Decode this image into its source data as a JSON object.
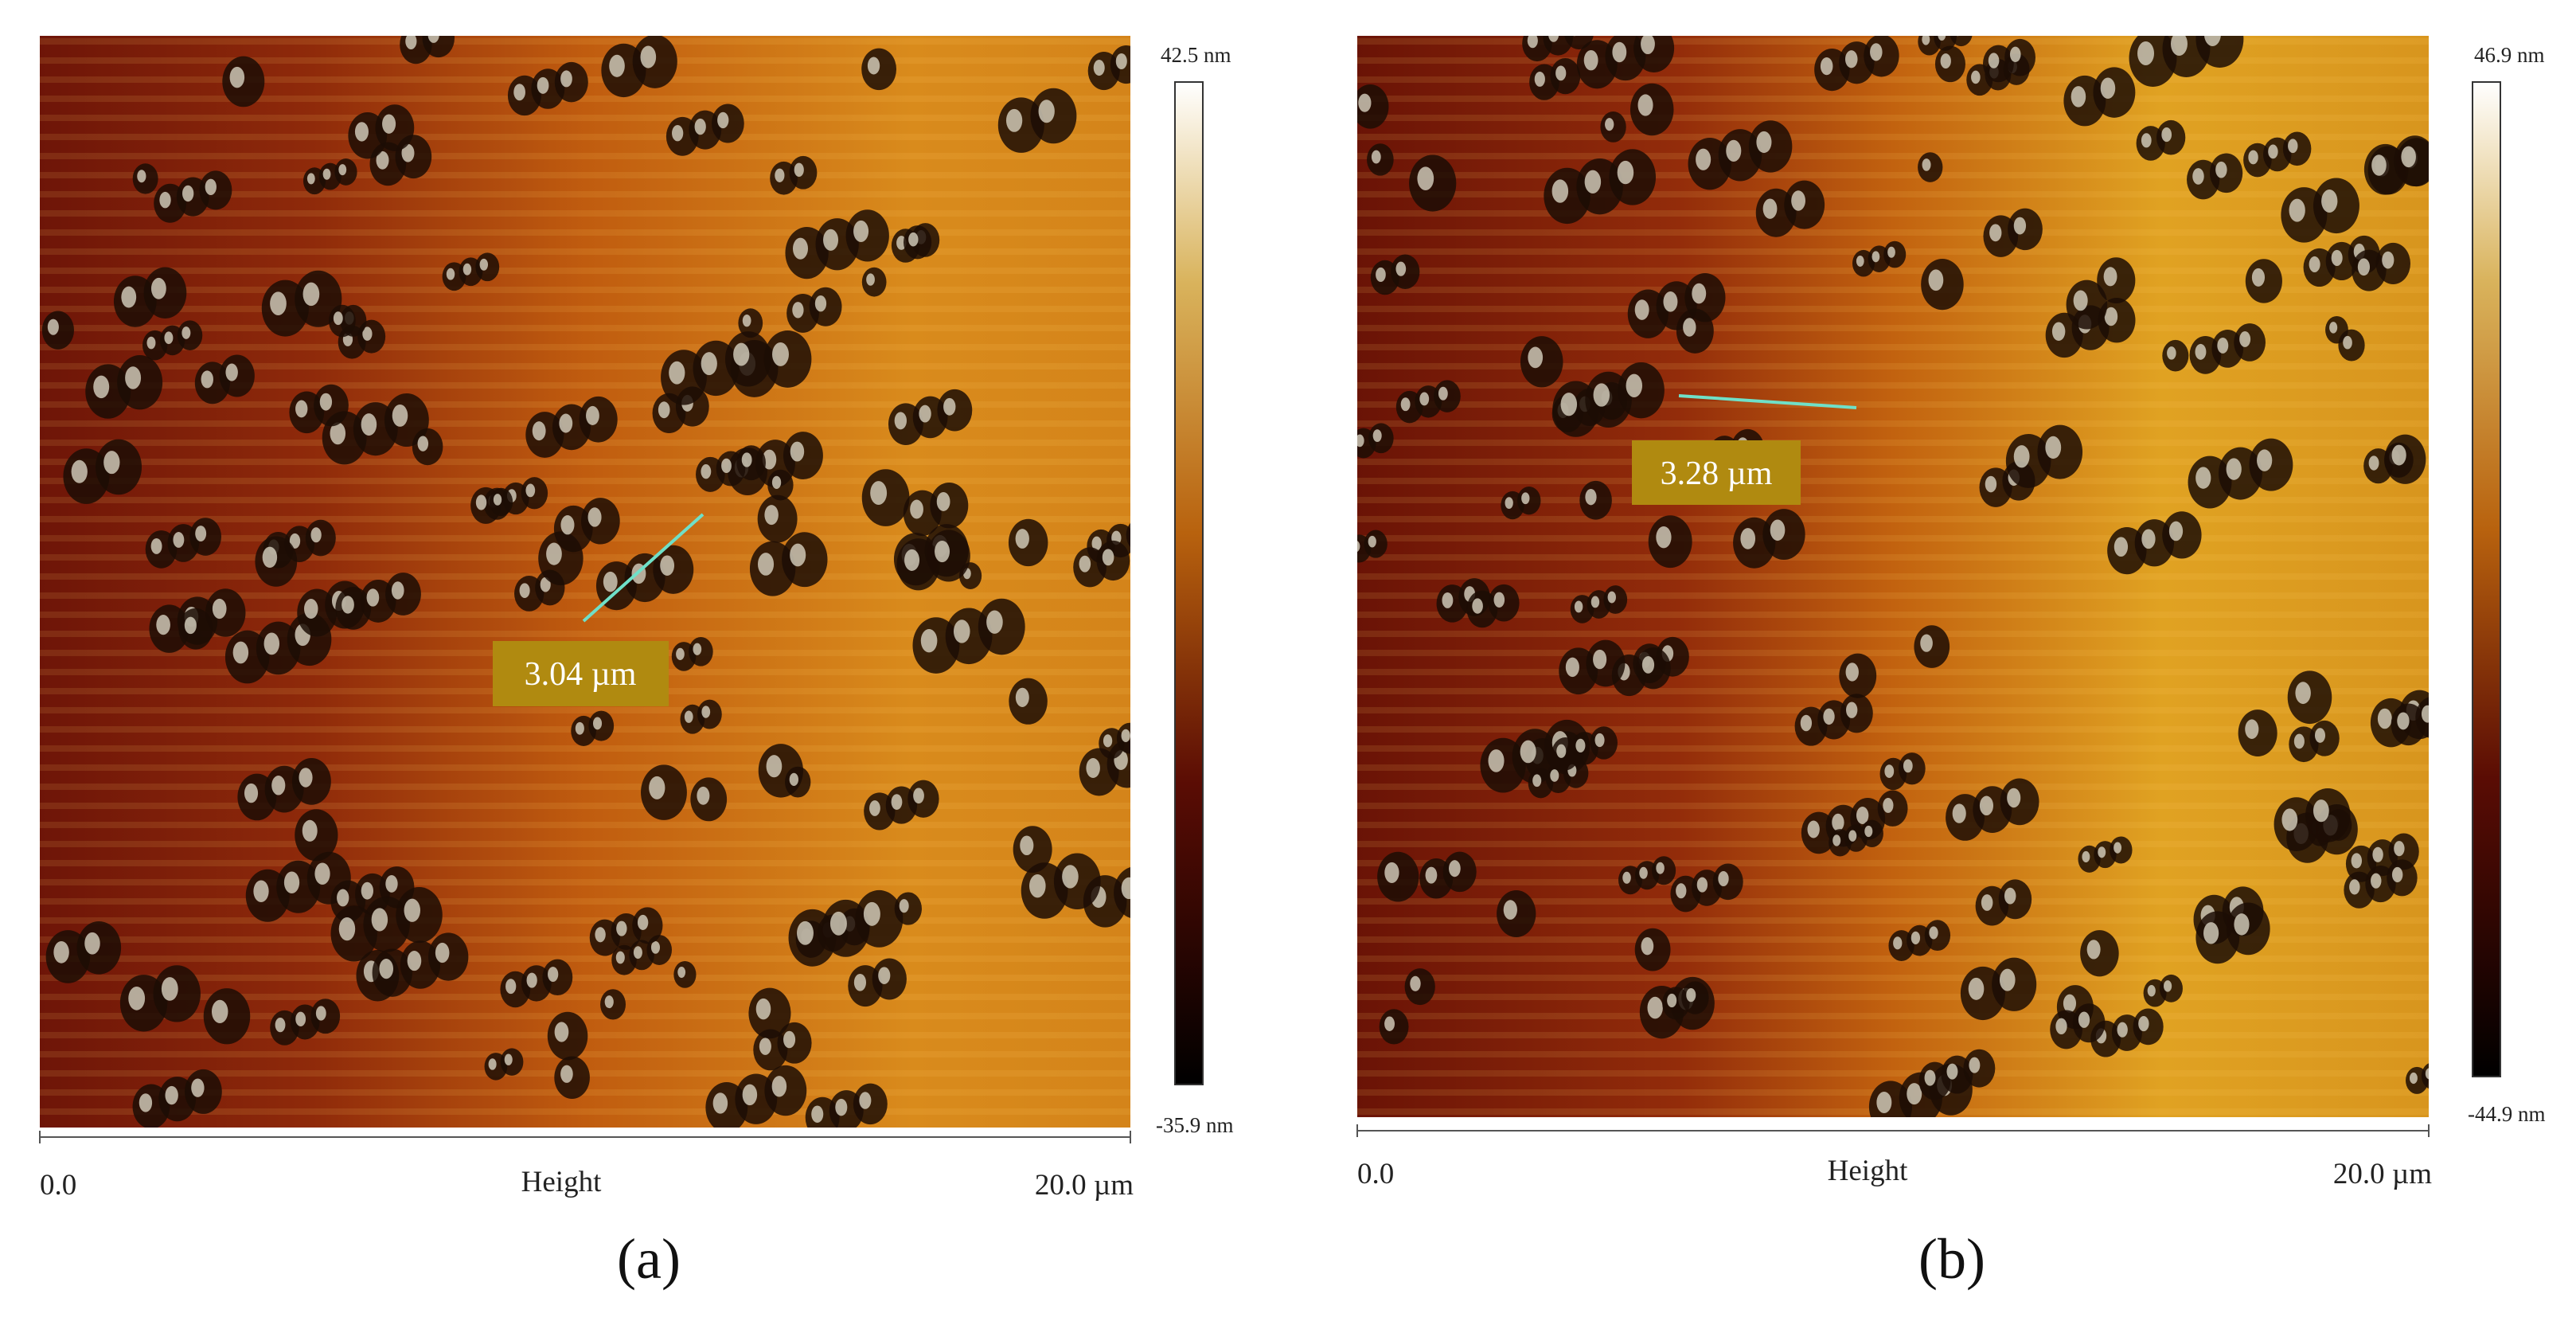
{
  "panels": [
    {
      "label": "(a)",
      "colorbar": {
        "max": "42.5 nm",
        "min": "-35.9 nm"
      },
      "measurement": "3.04 µm",
      "axis": {
        "start": "0.0",
        "title": "Height",
        "end": "20.0 µm"
      }
    },
    {
      "label": "(b)",
      "colorbar": {
        "max": "46.9 nm",
        "min": "-44.9 nm"
      },
      "measurement": "3.28 µm",
      "axis": {
        "start": "0.0",
        "title": "Height",
        "end": "20.0 µm"
      }
    }
  ]
}
